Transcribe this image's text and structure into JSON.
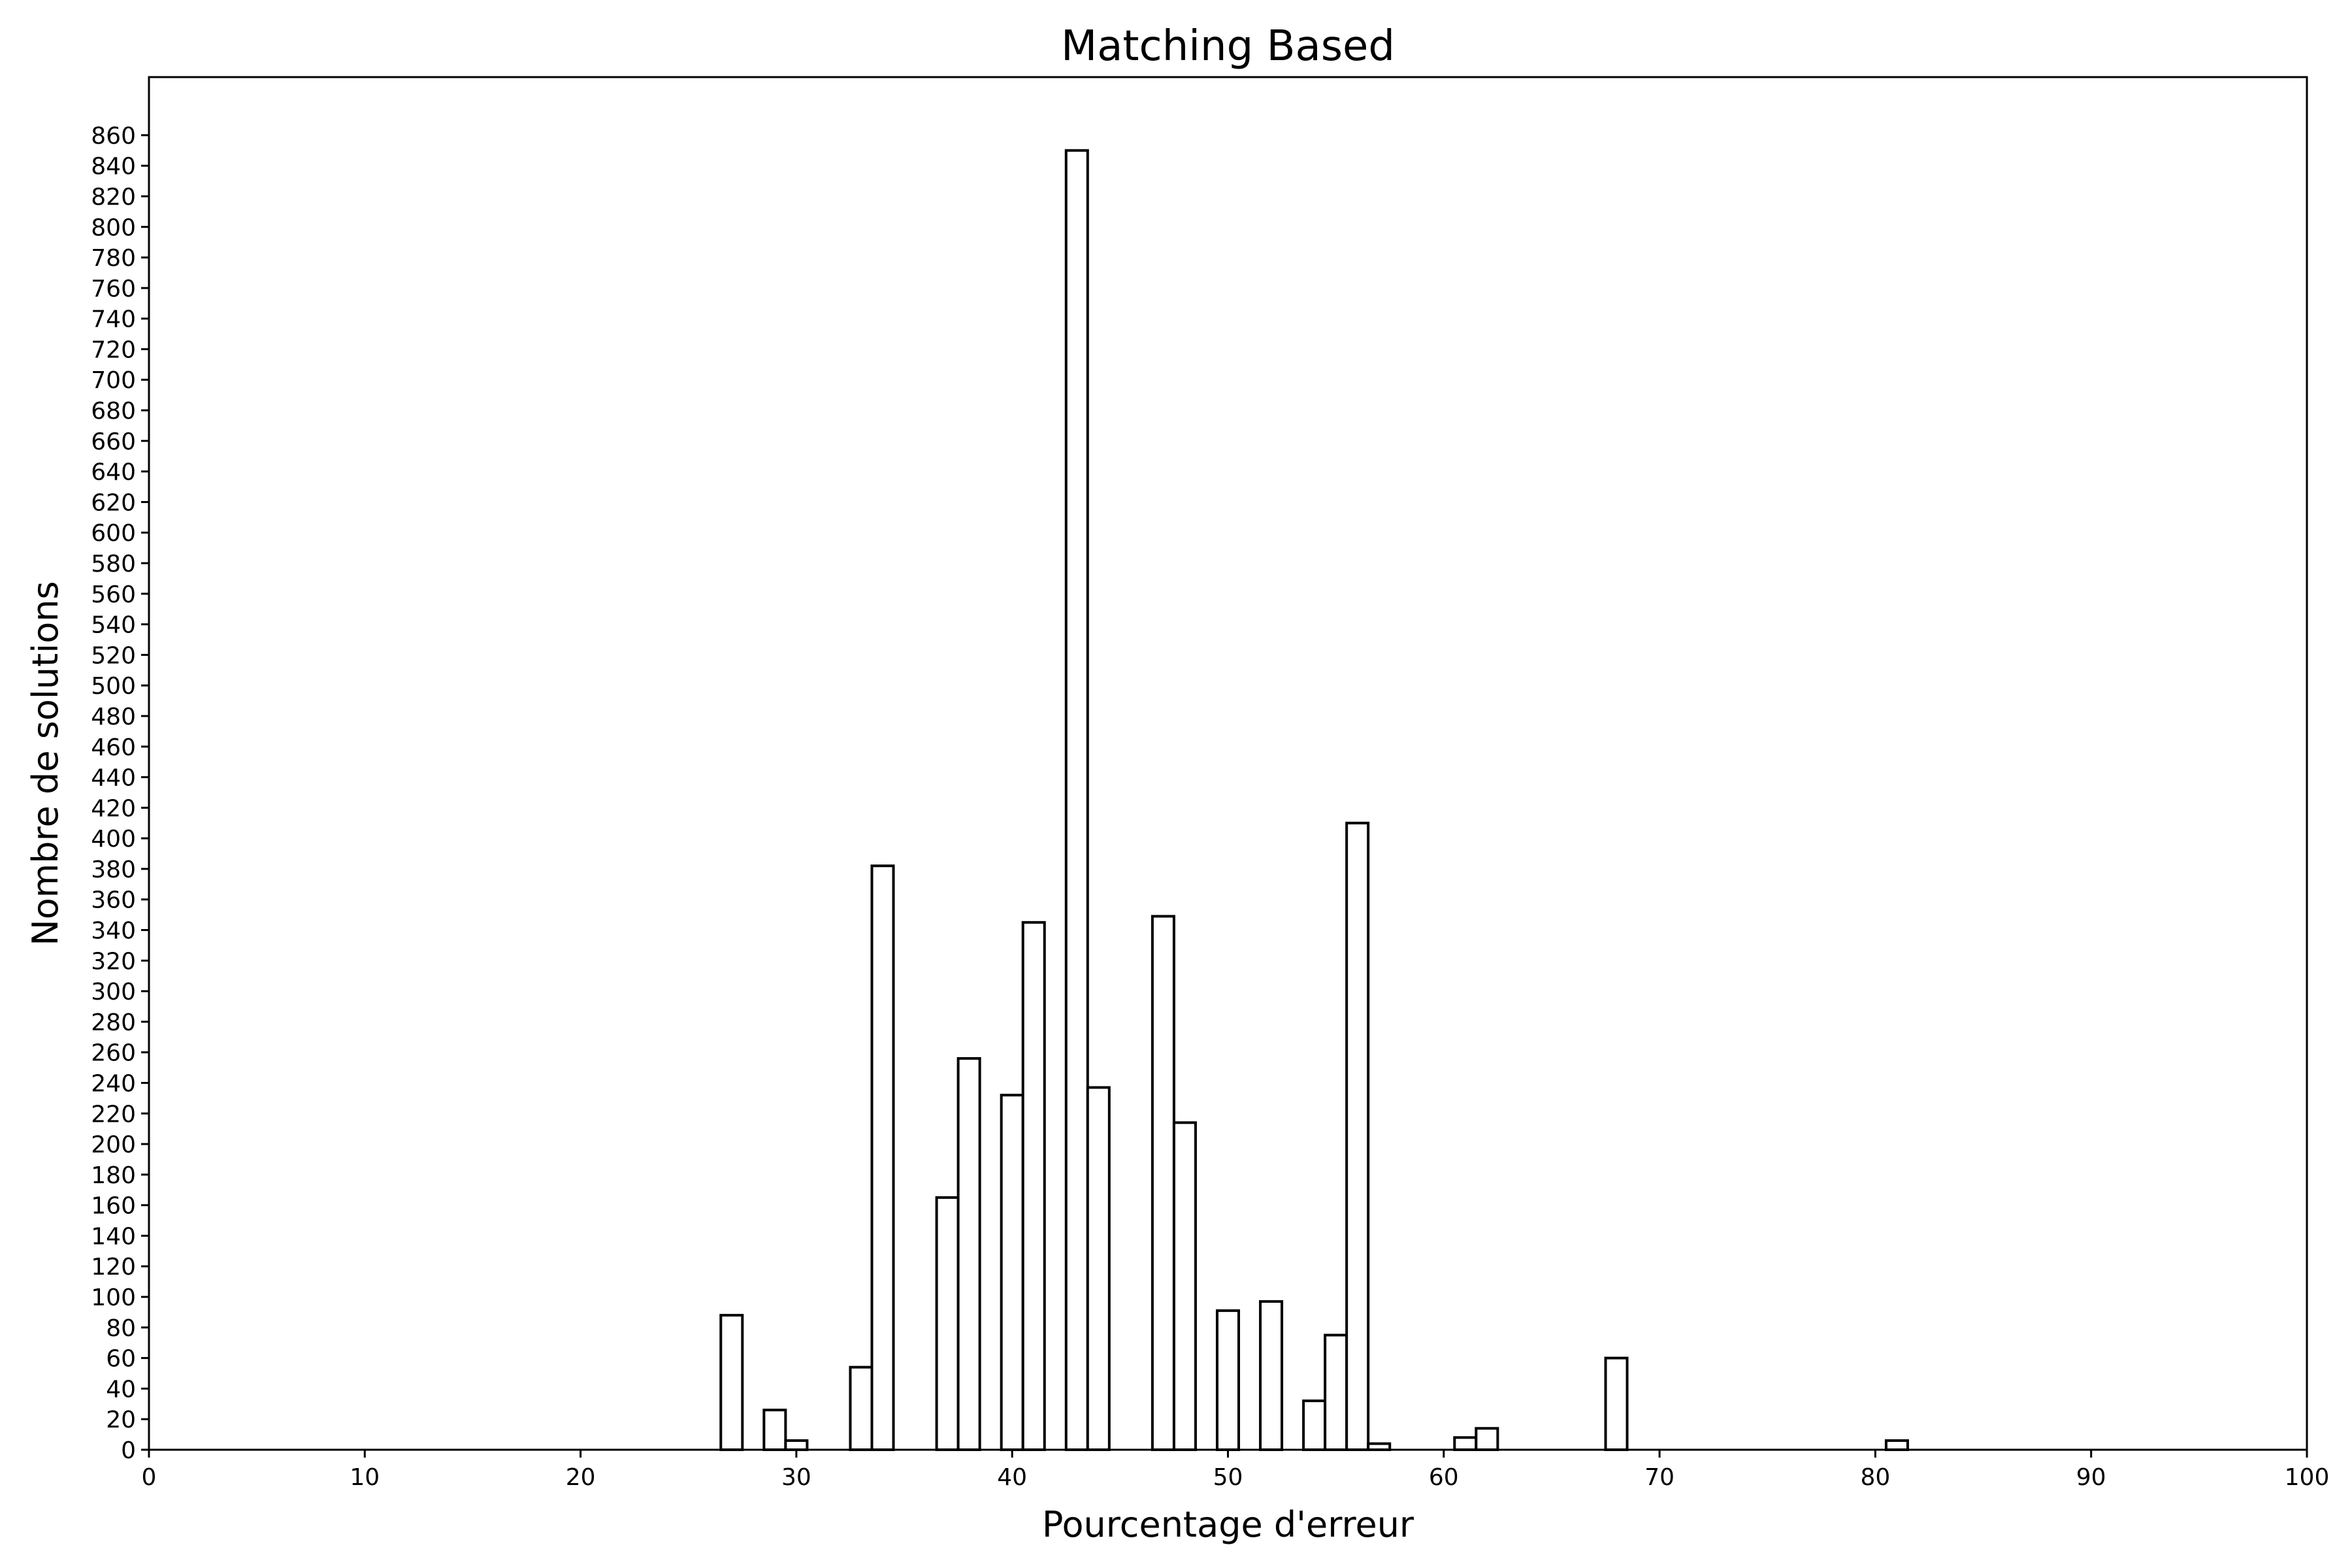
{
  "chart_data": {
    "type": "bar",
    "title": "Matching Based",
    "xlabel": "Pourcentage d'erreur",
    "ylabel": "Nombre de solutions",
    "xlim": [
      0,
      100
    ],
    "ylim": [
      0,
      860
    ],
    "x_ticks": [
      0,
      10,
      20,
      30,
      40,
      50,
      60,
      70,
      80,
      90,
      100
    ],
    "y_ticks": [
      0,
      20,
      40,
      60,
      80,
      100,
      120,
      140,
      160,
      180,
      200,
      220,
      240,
      260,
      280,
      300,
      320,
      340,
      360,
      380,
      400,
      420,
      440,
      460,
      480,
      500,
      520,
      540,
      560,
      580,
      600,
      620,
      640,
      660,
      680,
      700,
      720,
      740,
      760,
      780,
      800,
      820,
      840,
      860
    ],
    "grid": false,
    "bar_width": 1,
    "x": [
      27,
      29,
      30,
      33,
      34,
      37,
      38,
      40,
      41,
      43,
      44,
      47,
      48,
      50,
      52,
      54,
      55,
      56,
      57,
      61,
      62,
      68,
      81
    ],
    "values": [
      88,
      26,
      6,
      54,
      382,
      165,
      256,
      232,
      345,
      850,
      237,
      349,
      214,
      91,
      97,
      32,
      75,
      410,
      4,
      8,
      14,
      60,
      6
    ]
  }
}
